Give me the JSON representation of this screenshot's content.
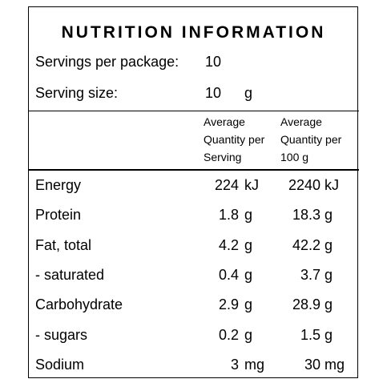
{
  "title": "NUTRITION INFORMATION",
  "servings": {
    "label": "Servings per package:",
    "value": 10
  },
  "serving_size": {
    "label": "Serving size:",
    "value": 10,
    "unit": "g"
  },
  "columns": [
    [
      "Average",
      "Quantity per",
      "Serving"
    ],
    [
      "Average",
      "Quantity per",
      "100 g"
    ]
  ],
  "rows": [
    {
      "name": "Energy",
      "per_serving": 224,
      "per_serving_unit": "kJ",
      "per_100g": 2240,
      "per_100g_unit": "kJ"
    },
    {
      "name": "Protein",
      "per_serving": 1.8,
      "per_serving_unit": "g",
      "per_100g": 18.3,
      "per_100g_unit": "g"
    },
    {
      "name": "Fat, total",
      "per_serving": 4.2,
      "per_serving_unit": "g",
      "per_100g": 42.2,
      "per_100g_unit": "g"
    },
    {
      "name": "- saturated",
      "per_serving": 0.4,
      "per_serving_unit": "g",
      "per_100g": 3.7,
      "per_100g_unit": "g"
    },
    {
      "name": "Carbohydrate",
      "per_serving": 2.9,
      "per_serving_unit": "g",
      "per_100g": 28.9,
      "per_100g_unit": "g"
    },
    {
      "name": "- sugars",
      "per_serving": 0.2,
      "per_serving_unit": "g",
      "per_100g": 1.5,
      "per_100g_unit": "g"
    },
    {
      "name": "Sodium",
      "per_serving": 3,
      "per_serving_unit": "mg",
      "per_100g": 30,
      "per_100g_unit": "mg"
    }
  ]
}
